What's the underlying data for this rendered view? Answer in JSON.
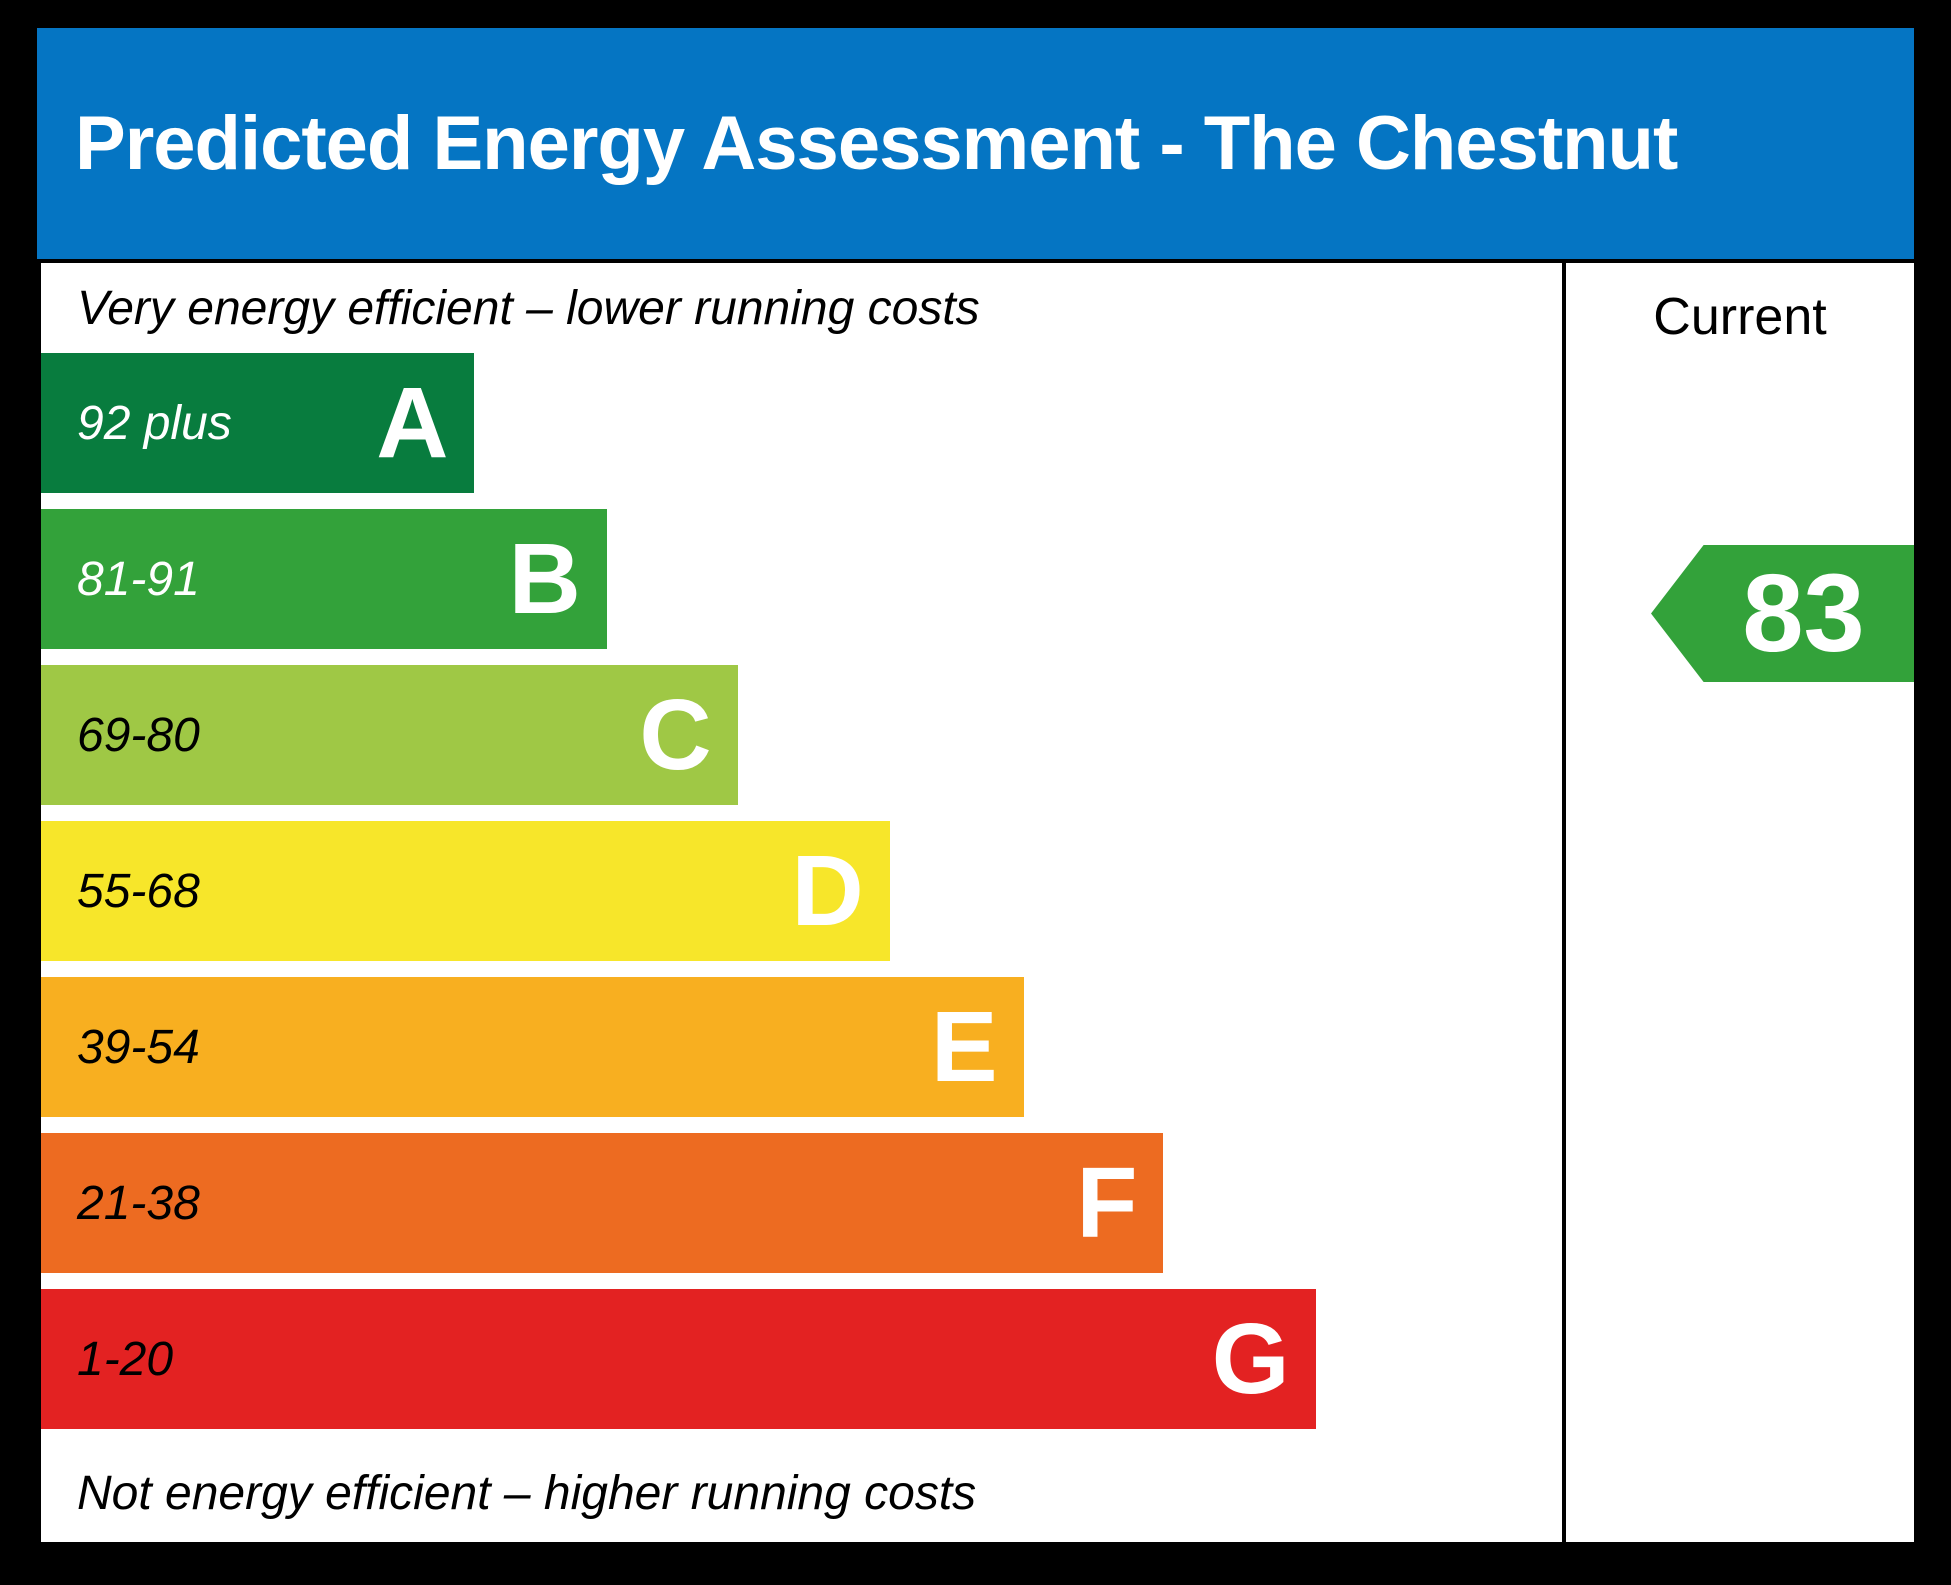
{
  "header": {
    "title": "Predicted Energy Assessment - The Chestnut"
  },
  "labels": {
    "top": "Very energy efficient – lower running costs",
    "bottom": "Not energy efficient – higher running costs"
  },
  "current": {
    "column_label": "Current",
    "value": "83",
    "band": "B",
    "arrow_color": "#33a23a"
  },
  "bands": [
    {
      "letter": "A",
      "range": "92 plus",
      "color": "#087c3e",
      "text_color": "#ffffff",
      "width_pct": 28.5
    },
    {
      "letter": "B",
      "range": "81-91",
      "color": "#33a23a",
      "text_color": "#ffffff",
      "width_pct": 37.2
    },
    {
      "letter": "C",
      "range": "69-80",
      "color": "#9fc845",
      "text_color": "#000000",
      "width_pct": 45.8
    },
    {
      "letter": "D",
      "range": "55-68",
      "color": "#f7e62a",
      "text_color": "#000000",
      "width_pct": 55.8
    },
    {
      "letter": "E",
      "range": "39-54",
      "color": "#f8af20",
      "text_color": "#000000",
      "width_pct": 64.6
    },
    {
      "letter": "F",
      "range": "21-38",
      "color": "#ed6b21",
      "text_color": "#000000",
      "width_pct": 73.8
    },
    {
      "letter": "G",
      "range": "1-20",
      "color": "#e32222",
      "text_color": "#000000",
      "width_pct": 83.8
    }
  ],
  "colors": {
    "page_bg": "#000000",
    "header_bg": "#0575c3",
    "panel_bg": "#ffffff",
    "border": "#000000"
  },
  "chart_data": {
    "type": "bar",
    "title": "Predicted Energy Assessment - The Chestnut",
    "categories": [
      "A",
      "B",
      "C",
      "D",
      "E",
      "F",
      "G"
    ],
    "band_ranges": [
      "92 plus",
      "81-91",
      "69-80",
      "55-68",
      "39-54",
      "21-38",
      "1-20"
    ],
    "band_colors": [
      "#087c3e",
      "#33a23a",
      "#9fc845",
      "#f7e62a",
      "#f8af20",
      "#ed6b21",
      "#e32222"
    ],
    "bar_relative_widths_pct": [
      28.5,
      37.2,
      45.8,
      55.8,
      64.6,
      73.8,
      83.8
    ],
    "current_rating": 83,
    "current_band": "B",
    "annotations": [
      "Very energy efficient – lower running costs",
      "Not energy efficient – higher running costs",
      "Current"
    ],
    "legend_position": "none",
    "grid": false
  }
}
